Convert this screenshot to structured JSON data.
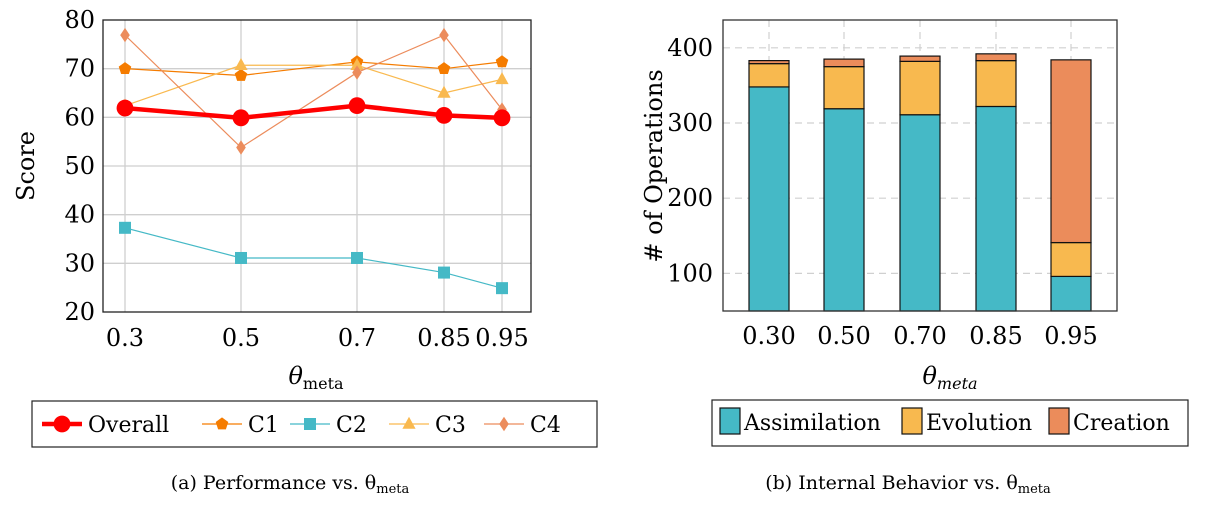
{
  "chart_data": [
    {
      "type": "line",
      "caption": "(a) Performance vs. θ",
      "caption_sub": "meta",
      "xlabel": "θ",
      "xlabel_sub": "meta",
      "ylabel": "Score",
      "x": [
        0.3,
        0.5,
        0.7,
        0.85,
        0.95
      ],
      "xtick_labels": [
        "0.3",
        "0.5",
        "0.7",
        "0.85",
        "0.95"
      ],
      "ylim": [
        20,
        80
      ],
      "yticks": [
        20,
        30,
        40,
        50,
        60,
        70,
        80
      ],
      "grid": true,
      "legend_placement": "bottom",
      "series": [
        {
          "name": "Overall",
          "values": [
            61.9,
            59.9,
            62.4,
            60.4,
            59.9
          ],
          "color": "#ff0000",
          "marker": "circle",
          "bold": true
        },
        {
          "name": "C1",
          "values": [
            70.0,
            68.6,
            71.4,
            70.0,
            71.4
          ],
          "color": "#f57c00",
          "marker": "pentagon"
        },
        {
          "name": "C2",
          "values": [
            37.3,
            31.1,
            31.1,
            28.1,
            24.9
          ],
          "color": "#45b9c6",
          "marker": "square"
        },
        {
          "name": "C3",
          "values": [
            62.4,
            70.7,
            70.7,
            65.0,
            67.8
          ],
          "color": "#f9b94f",
          "marker": "triangle"
        },
        {
          "name": "C4",
          "values": [
            76.9,
            53.8,
            69.2,
            76.9,
            61.6
          ],
          "color": "#ec8c5c",
          "marker": "diamond"
        }
      ]
    },
    {
      "type": "bar",
      "stacked": true,
      "caption": "(b) Internal Behavior vs. θ",
      "caption_sub": "meta",
      "xlabel": "θ",
      "xlabel_sub": "meta",
      "ylabel": "# of Operations",
      "categories": [
        "0.30",
        "0.50",
        "0.70",
        "0.85",
        "0.95"
      ],
      "ylim": [
        50,
        437
      ],
      "yticks": [
        100,
        200,
        300,
        400
      ],
      "grid": true,
      "legend_placement": "bottom",
      "series": [
        {
          "name": "Assimilation",
          "values": [
            348,
            319,
            311,
            322,
            96
          ],
          "color": "#45b9c6"
        },
        {
          "name": "Evolution",
          "values": [
            31,
            56,
            71,
            61,
            45
          ],
          "color": "#f8b94f"
        },
        {
          "name": "Creation",
          "values": [
            4,
            10,
            7,
            9,
            243
          ],
          "color": "#eb8c5b"
        }
      ]
    }
  ]
}
